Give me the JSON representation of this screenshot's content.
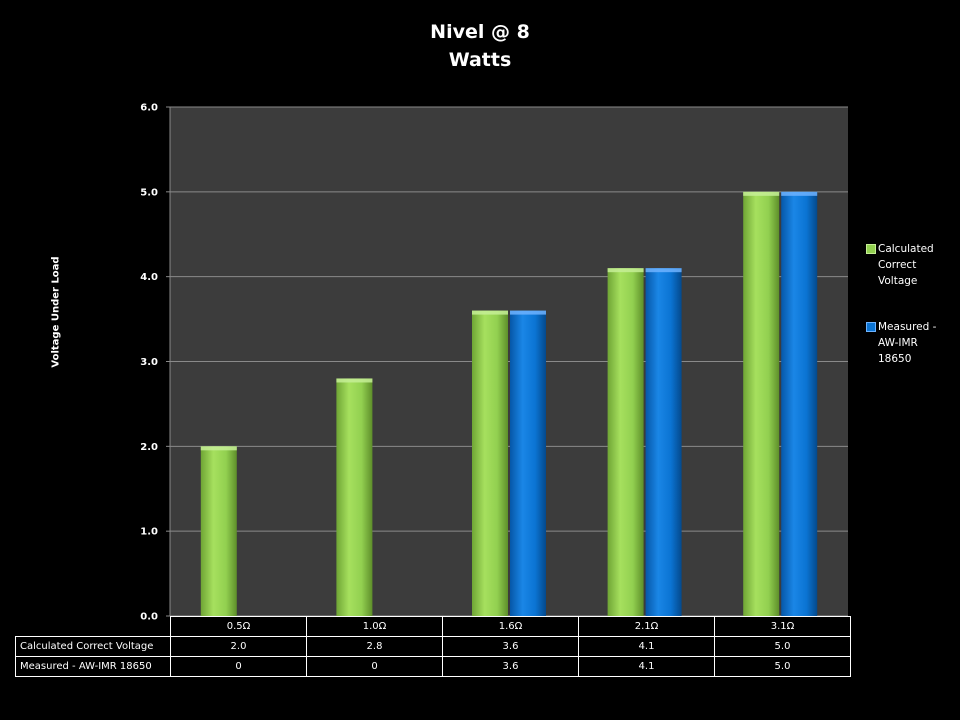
{
  "chart_data": {
    "type": "bar",
    "title": "Nivel @ 8",
    "subtitle": "Watts",
    "ylabel": "Voltage Under Load",
    "xlabel": "",
    "ylim": [
      0,
      6
    ],
    "yticks": [
      "0.0",
      "1.0",
      "2.0",
      "3.0",
      "4.0",
      "5.0",
      "6.0"
    ],
    "grid": true,
    "legend_position": "right",
    "categories": [
      "0.5Ω",
      "1.0Ω",
      "1.6Ω",
      "2.1Ω",
      "3.1Ω"
    ],
    "series": [
      {
        "name": "Calculated Correct Voltage",
        "legend_lines": [
          "Calculated",
          "Correct",
          "Voltage"
        ],
        "values": [
          2.0,
          2.8,
          3.6,
          4.1,
          5.0
        ],
        "table_values": [
          "2.0",
          "2.8",
          "3.6",
          "4.1",
          "5.0"
        ],
        "color": "#92d050"
      },
      {
        "name": "Measured - AW-IMR 18650",
        "legend_lines": [
          "Measured -",
          "AW-IMR",
          "18650"
        ],
        "values": [
          0,
          0,
          3.6,
          4.1,
          5.0
        ],
        "table_values": [
          "0",
          "0",
          "3.6",
          "4.1",
          "5.0"
        ],
        "color": "#0b74d3"
      }
    ],
    "plot_background": "#3c3c3c",
    "page_background": "#000000"
  }
}
